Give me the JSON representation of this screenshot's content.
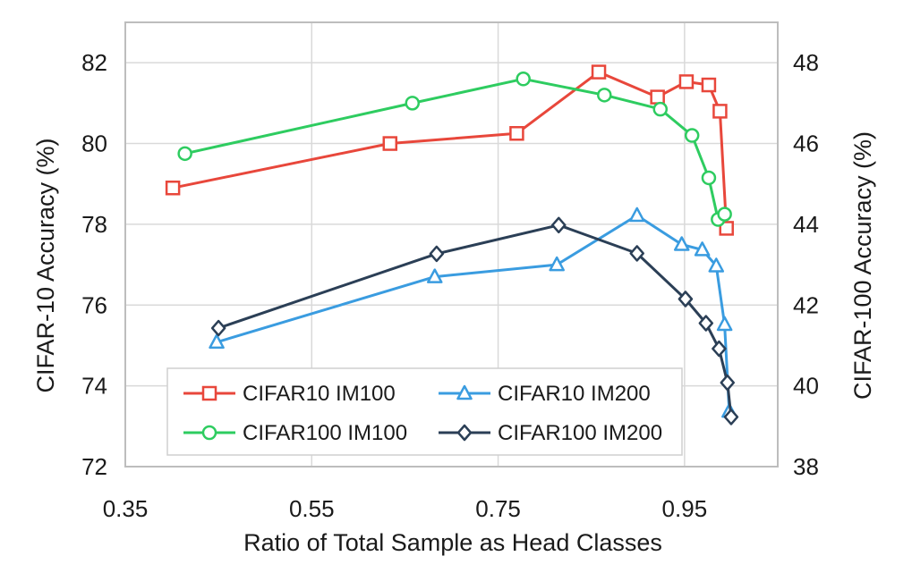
{
  "chart_data": {
    "type": "line",
    "title": "",
    "xlabel": "Ratio of Total Sample as Head Classes",
    "ylabel_left": "CIFAR-10 Accuracy (%)",
    "ylabel_right": "CIFAR-100 Accuracy (%)",
    "xlim": [
      0.35,
      1.05
    ],
    "xticks": [
      0.35,
      0.55,
      0.75,
      0.95
    ],
    "xtick_labels": [
      "0.35",
      "0.55",
      "0.75",
      "0.95"
    ],
    "ylim_left": [
      72,
      83
    ],
    "yticks_left": [
      72,
      74,
      76,
      78,
      80,
      82
    ],
    "ytick_labels_left": [
      "72",
      "74",
      "76",
      "78",
      "80",
      "82"
    ],
    "ylim_right": [
      38,
      49
    ],
    "yticks_right": [
      38,
      40,
      42,
      44,
      46,
      48
    ],
    "ytick_labels_right": [
      "38",
      "40",
      "42",
      "44",
      "46",
      "48"
    ],
    "grid": true,
    "legend_position": "bottom-left",
    "series": [
      {
        "name": "CIFAR10 IM100",
        "axis": "left",
        "color": "#e8473b",
        "marker": "square",
        "x": [
          0.401,
          0.634,
          0.77,
          0.858,
          0.921,
          0.952,
          0.976,
          0.988,
          0.995
        ],
        "y": [
          78.9,
          80.0,
          80.25,
          81.77,
          81.15,
          81.53,
          81.45,
          80.8,
          77.9
        ]
      },
      {
        "name": "CIFAR10 IM200",
        "axis": "left",
        "color": "#3a9ce0",
        "marker": "triangle",
        "x": [
          0.448,
          0.682,
          0.813,
          0.899,
          0.947,
          0.969,
          0.984,
          0.993,
          0.998
        ],
        "y": [
          75.08,
          76.7,
          77.0,
          78.22,
          77.5,
          77.37,
          76.97,
          75.52,
          73.37
        ]
      },
      {
        "name": "CIFAR100 IM100",
        "axis": "right",
        "color": "#2ecc60",
        "marker": "circle",
        "x": [
          0.414,
          0.658,
          0.777,
          0.864,
          0.924,
          0.958,
          0.976,
          0.986,
          0.993
        ],
        "y": [
          45.75,
          47.0,
          47.6,
          47.2,
          46.85,
          46.2,
          45.15,
          44.12,
          44.25
        ]
      },
      {
        "name": "CIFAR100 IM200",
        "axis": "right",
        "color": "#2b3f56",
        "marker": "diamond",
        "x": [
          0.45,
          0.684,
          0.815,
          0.899,
          0.951,
          0.973,
          0.987,
          0.996,
          1.0
        ],
        "y": [
          41.43,
          43.27,
          43.98,
          43.28,
          42.15,
          41.55,
          40.92,
          40.08,
          39.23
        ]
      }
    ]
  }
}
